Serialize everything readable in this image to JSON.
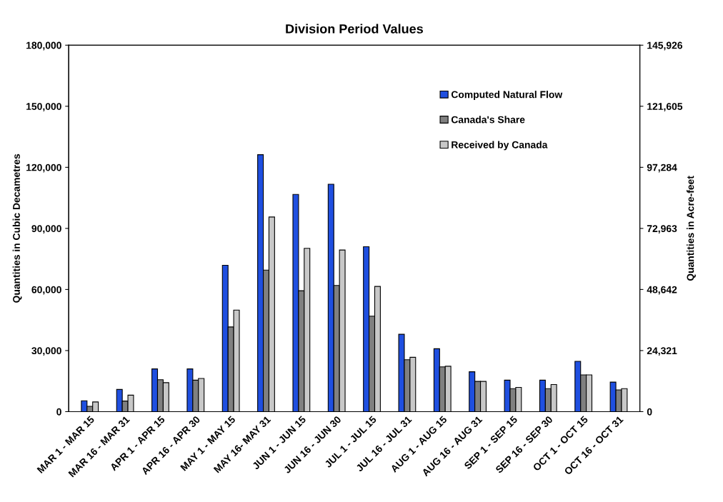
{
  "chart_data": {
    "type": "bar",
    "title": "Division Period Values",
    "ylabel": "Quantities in Cubic Decametres",
    "y2label": "Quantities in Acre-feet",
    "categories": [
      "MAR 1 - MAR 15",
      "MAR 16 - MAR 31",
      "APR 1 - APR 15",
      "APR 16 - APR 30",
      "MAY 1 - MAY 15",
      "MAY 16- MAY 31",
      "JUN 1 - JUN 15",
      "JUN 16 - JUN 30",
      "JUL 1 - JUL 15",
      "JUL 16 - JUL 31",
      "AUG 1 - AUG 15",
      "AUG 16 - AUG 31",
      "SEP 1 - SEP 15",
      "SEP 16 - SEP 30",
      "OCT 1 - OCT 15",
      "OCT 16 - OCT 31"
    ],
    "series": [
      {
        "name": "Computed Natural Flow",
        "color": "#1f4fe0",
        "values": [
          5350,
          10900,
          21000,
          21000,
          71900,
          126200,
          106700,
          111700,
          81000,
          38000,
          30900,
          19600,
          15450,
          15450,
          24700,
          14500
        ]
      },
      {
        "name": "Canada's Share",
        "color": "#808080",
        "values": [
          2600,
          5200,
          15700,
          15450,
          41600,
          69500,
          59400,
          62000,
          46900,
          25500,
          22000,
          14850,
          11300,
          11300,
          18050,
          10700
        ]
      },
      {
        "name": "Received by Canada",
        "color": "#c8c8c8",
        "values": [
          4750,
          8100,
          14250,
          16300,
          49900,
          95600,
          80200,
          79400,
          61500,
          26700,
          22300,
          14850,
          11900,
          13300,
          18050,
          11300
        ]
      }
    ],
    "ylim": [
      0,
      180000
    ],
    "yticks": [
      {
        "value": 0,
        "label": "0"
      },
      {
        "value": 30000,
        "label": "30,000"
      },
      {
        "value": 60000,
        "label": "60,000"
      },
      {
        "value": 90000,
        "label": "90,000"
      },
      {
        "value": 120000,
        "label": "120,000"
      },
      {
        "value": 150000,
        "label": "150,000"
      },
      {
        "value": 180000,
        "label": "180,000"
      }
    ],
    "y2lim": [
      0,
      145926
    ],
    "y2ticks": [
      {
        "value": 0,
        "label": "0"
      },
      {
        "value": 24321,
        "label": "24,321"
      },
      {
        "value": 48642,
        "label": "48,642"
      },
      {
        "value": 72963,
        "label": "72,963"
      },
      {
        "value": 97284,
        "label": "97,284"
      },
      {
        "value": 121605,
        "label": "121,605"
      },
      {
        "value": 145926,
        "label": "145,926"
      }
    ],
    "grid": false,
    "legend": "top right"
  }
}
